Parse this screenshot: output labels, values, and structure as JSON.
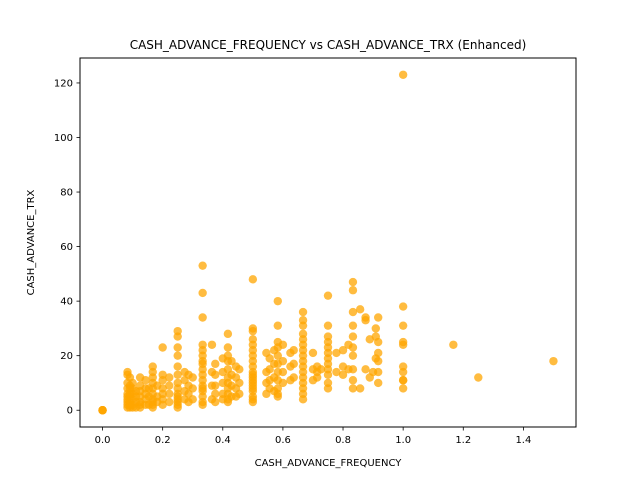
{
  "chart_data": {
    "type": "scatter",
    "title": "CASH_ADVANCE_FREQUENCY vs CASH_ADVANCE_TRX (Enhanced)",
    "xlabel": "CASH_ADVANCE_FREQUENCY",
    "ylabel": "CASH_ADVANCE_TRX",
    "xlim": [
      -0.075,
      1.575
    ],
    "ylim": [
      -6.15,
      129.15
    ],
    "xticks": [
      0.0,
      0.2,
      0.4,
      0.6,
      0.8,
      1.0,
      1.2,
      1.4
    ],
    "xtick_labels": [
      "0.0",
      "0.2",
      "0.4",
      "0.6",
      "0.8",
      "1.0",
      "1.2",
      "1.4"
    ],
    "yticks": [
      0,
      20,
      40,
      60,
      80,
      100,
      120
    ],
    "ytick_labels": [
      "0",
      "20",
      "40",
      "60",
      "80",
      "100",
      "120"
    ],
    "grid": false,
    "legend": "none",
    "point_color": "#FFA500",
    "point_alpha": 0.75,
    "points": {
      "x": [
        0.0,
        0.0,
        0.0,
        0.0,
        0.083,
        0.083,
        0.083,
        0.083,
        0.083,
        0.083,
        0.083,
        0.083,
        0.083,
        0.083,
        0.091,
        0.091,
        0.091,
        0.091,
        0.091,
        0.091,
        0.091,
        0.091,
        0.1,
        0.1,
        0.1,
        0.1,
        0.1,
        0.1,
        0.111,
        0.111,
        0.111,
        0.111,
        0.125,
        0.125,
        0.125,
        0.125,
        0.125,
        0.125,
        0.125,
        0.143,
        0.143,
        0.143,
        0.143,
        0.143,
        0.154,
        0.154,
        0.154,
        0.167,
        0.167,
        0.167,
        0.167,
        0.167,
        0.167,
        0.167,
        0.167,
        0.167,
        0.167,
        0.182,
        0.182,
        0.182,
        0.2,
        0.2,
        0.2,
        0.2,
        0.2,
        0.2,
        0.2,
        0.222,
        0.222,
        0.222,
        0.222,
        0.25,
        0.25,
        0.25,
        0.25,
        0.25,
        0.25,
        0.25,
        0.25,
        0.25,
        0.25,
        0.25,
        0.25,
        0.25,
        0.25,
        0.273,
        0.273,
        0.273,
        0.273,
        0.286,
        0.286,
        0.286,
        0.286,
        0.3,
        0.3,
        0.3,
        0.333,
        0.333,
        0.333,
        0.333,
        0.333,
        0.333,
        0.333,
        0.333,
        0.333,
        0.333,
        0.333,
        0.333,
        0.333,
        0.333,
        0.333,
        0.333,
        0.333,
        0.364,
        0.364,
        0.364,
        0.364,
        0.375,
        0.375,
        0.375,
        0.375,
        0.375,
        0.4,
        0.4,
        0.4,
        0.4,
        0.4,
        0.417,
        0.417,
        0.417,
        0.417,
        0.417,
        0.417,
        0.417,
        0.417,
        0.417,
        0.417,
        0.417,
        0.429,
        0.429,
        0.429,
        0.429,
        0.444,
        0.444,
        0.444,
        0.444,
        0.455,
        0.455,
        0.455,
        0.5,
        0.5,
        0.5,
        0.5,
        0.5,
        0.5,
        0.5,
        0.5,
        0.5,
        0.5,
        0.5,
        0.5,
        0.5,
        0.5,
        0.5,
        0.5,
        0.5,
        0.5,
        0.5,
        0.5,
        0.545,
        0.545,
        0.545,
        0.545,
        0.556,
        0.556,
        0.556,
        0.556,
        0.571,
        0.571,
        0.571,
        0.571,
        0.583,
        0.583,
        0.583,
        0.583,
        0.583,
        0.583,
        0.583,
        0.583,
        0.583,
        0.583,
        0.583,
        0.6,
        0.6,
        0.6,
        0.6,
        0.625,
        0.625,
        0.625,
        0.636,
        0.636,
        0.636,
        0.667,
        0.667,
        0.667,
        0.667,
        0.667,
        0.667,
        0.667,
        0.667,
        0.667,
        0.667,
        0.667,
        0.667,
        0.667,
        0.667,
        0.667,
        0.667,
        0.7,
        0.7,
        0.7,
        0.714,
        0.714,
        0.714,
        0.727,
        0.75,
        0.75,
        0.75,
        0.75,
        0.75,
        0.75,
        0.75,
        0.75,
        0.75,
        0.75,
        0.75,
        0.75,
        0.778,
        0.778,
        0.8,
        0.8,
        0.8,
        0.818,
        0.818,
        0.833,
        0.833,
        0.833,
        0.833,
        0.833,
        0.833,
        0.833,
        0.833,
        0.833,
        0.833,
        0.857,
        0.857,
        0.875,
        0.875,
        0.875,
        0.889,
        0.889,
        0.9,
        0.909,
        0.909,
        0.909,
        0.917,
        0.917,
        0.917,
        0.917,
        0.917,
        0.917,
        1.0,
        1.0,
        1.0,
        1.0,
        1.0,
        1.0,
        1.0,
        1.0,
        1.0,
        1.0,
        1.167,
        1.25,
        1.5
      ],
      "y": [
        0,
        0,
        0,
        0,
        1,
        2,
        3,
        4,
        5,
        6,
        8,
        10,
        13,
        14,
        1,
        2,
        3,
        5,
        6,
        8,
        9,
        12,
        1,
        2,
        4,
        6,
        8,
        10,
        1,
        3,
        5,
        7,
        1,
        2,
        3,
        5,
        7,
        9,
        12,
        2,
        4,
        6,
        8,
        11,
        2,
        5,
        8,
        1,
        2,
        3,
        4,
        6,
        8,
        10,
        12,
        14,
        16,
        3,
        5,
        9,
        2,
        4,
        6,
        8,
        11,
        13,
        23,
        3,
        6,
        9,
        12,
        1,
        2,
        3,
        4,
        5,
        6,
        8,
        10,
        13,
        16,
        20,
        23,
        27,
        29,
        4,
        7,
        11,
        14,
        3,
        6,
        9,
        13,
        4,
        8,
        12,
        2,
        3,
        5,
        7,
        9,
        11,
        13,
        15,
        17,
        20,
        22,
        24,
        34,
        43,
        53,
        8,
        18,
        4,
        9,
        14,
        24,
        3,
        6,
        9,
        13,
        17,
        4,
        6,
        10,
        14,
        19,
        3,
        4,
        6,
        8,
        10,
        12,
        15,
        18,
        20,
        23,
        28,
        5,
        9,
        13,
        18,
        5,
        8,
        12,
        16,
        6,
        10,
        15,
        3,
        5,
        8,
        10,
        12,
        14,
        16,
        18,
        20,
        22,
        24,
        26,
        29,
        30,
        48,
        11,
        7,
        4,
        9,
        13,
        6,
        10,
        14,
        21,
        8,
        11,
        15,
        19,
        7,
        12,
        17,
        22,
        5,
        8,
        11,
        14,
        17,
        20,
        23,
        25,
        31,
        40,
        6,
        10,
        14,
        18,
        24,
        11,
        16,
        21,
        12,
        17,
        22,
        4,
        6,
        8,
        10,
        12,
        14,
        16,
        18,
        20,
        22,
        24,
        26,
        28,
        31,
        33,
        36,
        11,
        15,
        21,
        12,
        14,
        16,
        15,
        8,
        10,
        13,
        15,
        17,
        19,
        21,
        23,
        25,
        27,
        31,
        42,
        14,
        21,
        13,
        16,
        22,
        15,
        24,
        8,
        11,
        15,
        20,
        23,
        27,
        31,
        36,
        44,
        47,
        8,
        37,
        15,
        33,
        34,
        12,
        26,
        14,
        19,
        27,
        30,
        10,
        14,
        18,
        21,
        25,
        34,
        8,
        11,
        14,
        16,
        24,
        25,
        31,
        38,
        123,
        11,
        24,
        12,
        18
      ]
    }
  }
}
